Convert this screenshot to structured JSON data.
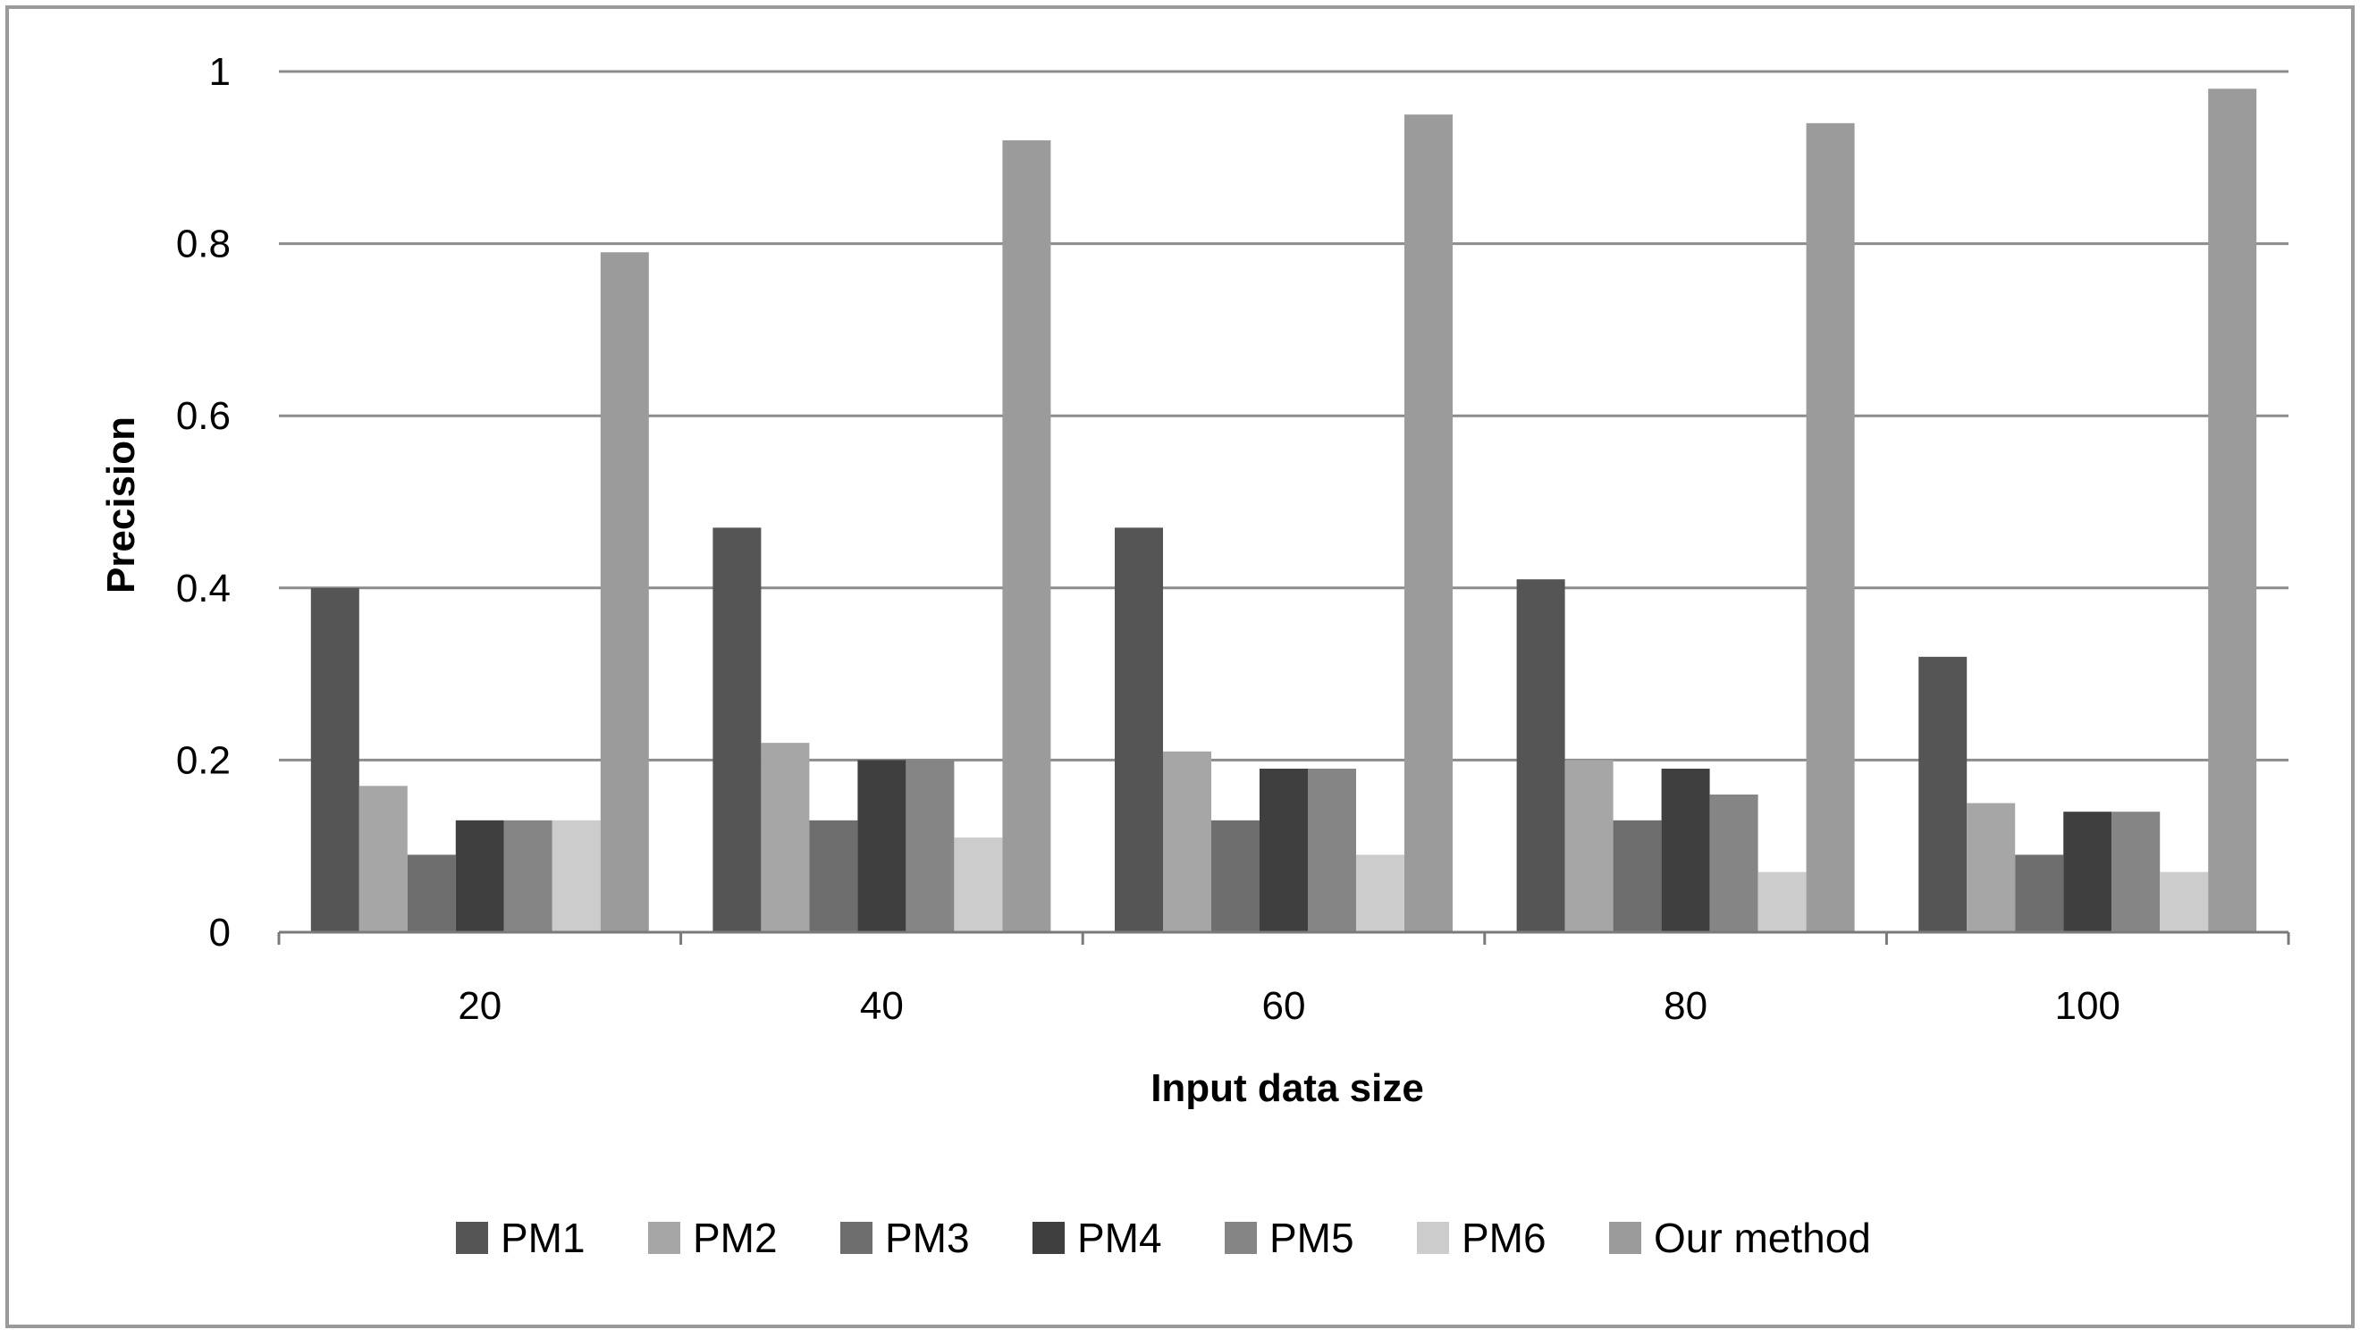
{
  "chart_data": {
    "type": "bar",
    "title": "",
    "xlabel": "Input data size",
    "ylabel": "Precision",
    "ylim": [
      0,
      1
    ],
    "yticks": [
      0,
      0.2,
      0.4,
      0.6,
      0.8,
      1
    ],
    "ytick_labels": [
      "0",
      "0.2",
      "0.4",
      "0.6",
      "0.8",
      "1"
    ],
    "grid": true,
    "legend_position": "bottom",
    "categories": [
      "20",
      "40",
      "60",
      "80",
      "100"
    ],
    "series": [
      {
        "name": "PM1",
        "color": "#555555",
        "values": [
          0.4,
          0.47,
          0.47,
          0.41,
          0.32
        ]
      },
      {
        "name": "PM2",
        "color": "#a6a6a6",
        "values": [
          0.17,
          0.22,
          0.21,
          0.2,
          0.15
        ]
      },
      {
        "name": "PM3",
        "color": "#6e6e6e",
        "values": [
          0.09,
          0.13,
          0.13,
          0.13,
          0.09
        ]
      },
      {
        "name": "PM4",
        "color": "#3f3f3f",
        "values": [
          0.13,
          0.2,
          0.19,
          0.19,
          0.14
        ]
      },
      {
        "name": "PM5",
        "color": "#858585",
        "values": [
          0.13,
          0.2,
          0.19,
          0.16,
          0.14
        ]
      },
      {
        "name": "PM6",
        "color": "#cccccc",
        "values": [
          0.13,
          0.11,
          0.09,
          0.07,
          0.07
        ]
      },
      {
        "name": "Our method",
        "color": "#9b9b9b",
        "values": [
          0.79,
          0.92,
          0.95,
          0.94,
          0.98
        ]
      }
    ]
  }
}
